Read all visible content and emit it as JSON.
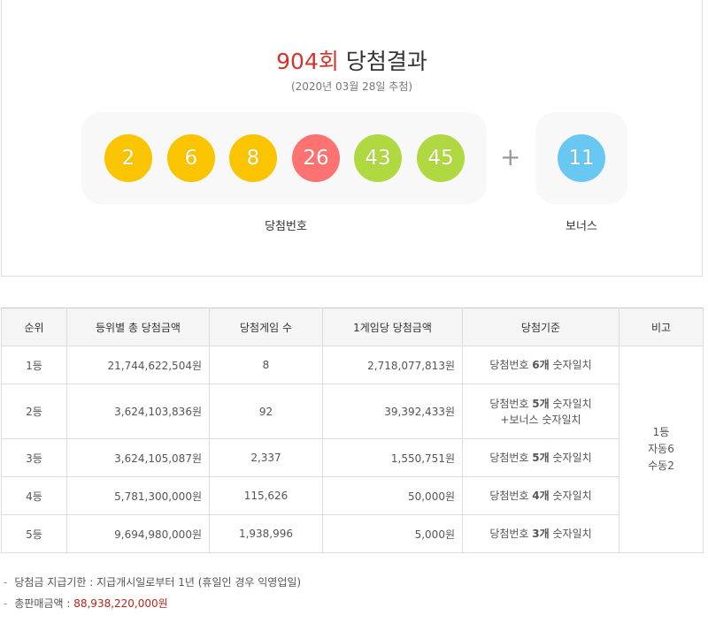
{
  "header": {
    "round": "904회",
    "title_suffix": "당첨결과",
    "draw_date": "(2020년 03월 28일 추첨)"
  },
  "numbers": [
    {
      "value": "2",
      "color": "#fbc400"
    },
    {
      "value": "6",
      "color": "#fbc400"
    },
    {
      "value": "8",
      "color": "#fbc400"
    },
    {
      "value": "26",
      "color": "#ff7272"
    },
    {
      "value": "43",
      "color": "#b0d840"
    },
    {
      "value": "45",
      "color": "#b0d840"
    }
  ],
  "plus_sign": "+",
  "bonus": {
    "value": "11",
    "color": "#69c8f2"
  },
  "labels": {
    "winning": "당첨번호",
    "bonus": "보너스"
  },
  "table": {
    "headers": [
      "순위",
      "등위별 총 당첨금액",
      "당첨게임 수",
      "1게임당 당첨금액",
      "당첨기준",
      "비고"
    ],
    "rows": [
      {
        "rank": "1등",
        "total": "21,744,622,504원",
        "games": "8",
        "per_game": "2,718,077,813원",
        "criteria_pre": "당첨번호 ",
        "criteria_bold": "6개",
        "criteria_post": " 숫자일치",
        "criteria_line2": ""
      },
      {
        "rank": "2등",
        "total": "3,624,103,836원",
        "games": "92",
        "per_game": "39,392,433원",
        "criteria_pre": "당첨번호 ",
        "criteria_bold": "5개",
        "criteria_post": " 숫자일치",
        "criteria_line2": "+보너스 숫자일치"
      },
      {
        "rank": "3등",
        "total": "3,624,105,087원",
        "games": "2,337",
        "per_game": "1,550,751원",
        "criteria_pre": "당첨번호 ",
        "criteria_bold": "5개",
        "criteria_post": " 숫자일치",
        "criteria_line2": ""
      },
      {
        "rank": "4등",
        "total": "5,781,300,000원",
        "games": "115,626",
        "per_game": "50,000원",
        "criteria_pre": "당첨번호 ",
        "criteria_bold": "4개",
        "criteria_post": " 숫자일치",
        "criteria_line2": ""
      },
      {
        "rank": "5등",
        "total": "9,694,980,000원",
        "games": "1,938,996",
        "per_game": "5,000원",
        "criteria_pre": "당첨번호 ",
        "criteria_bold": "3개",
        "criteria_post": " 숫자일치",
        "criteria_line2": ""
      }
    ],
    "note": [
      "1등",
      "자동6",
      "수동2"
    ]
  },
  "footnotes": {
    "payout_period": "당첨금 지급기한 : 지급개시일로부터 1년 (휴일인 경우 익영업일)",
    "total_sales_label": "총판매금액 : ",
    "total_sales_value": "88,938,220,000원"
  }
}
